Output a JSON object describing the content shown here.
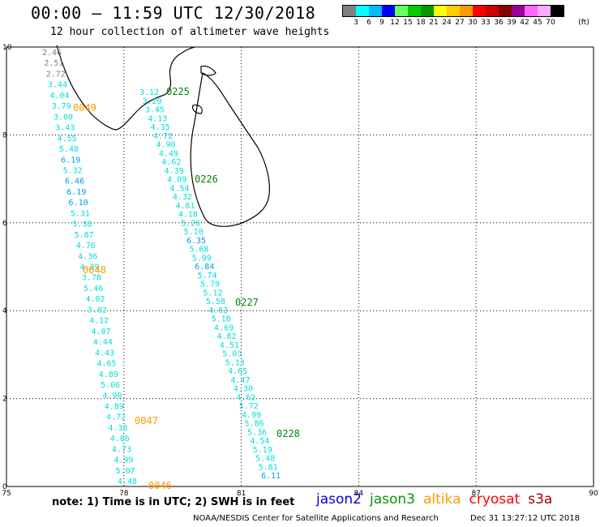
{
  "title": "00:00 – 11:59 UTC 12/30/2018",
  "subtitle": "12 hour collection of altimeter wave heights",
  "legend": {
    "colors": [
      "#808080",
      "#00ffff",
      "#00bbff",
      "#0000ff",
      "#66ff66",
      "#00cc00",
      "#009900",
      "#ffff00",
      "#ffcc00",
      "#ff9900",
      "#ff0000",
      "#cc0000",
      "#880000",
      "#990099",
      "#ff66ff",
      "#ffaaff",
      "#000000"
    ],
    "labels": [
      "3",
      "6",
      "9",
      "12",
      "15",
      "18",
      "21",
      "24",
      "27",
      "30",
      "33",
      "36",
      "39",
      "42",
      "45",
      "70"
    ],
    "unit": "(ft)"
  },
  "axes": {
    "x_ticks": [
      "75",
      "78",
      "81",
      "84",
      "87",
      "90"
    ],
    "y_ticks": [
      "0",
      "2",
      "4",
      "6",
      "8",
      "10"
    ]
  },
  "tracks": [
    {
      "label": "0049",
      "color": "#ff9900"
    },
    {
      "label": "0225",
      "color": "#008800"
    },
    {
      "label": "0226",
      "color": "#008800"
    },
    {
      "label": "0048",
      "color": "#ff9900"
    },
    {
      "label": "0227",
      "color": "#008800"
    },
    {
      "label": "0047",
      "color": "#ff9900"
    },
    {
      "label": "0228",
      "color": "#008800"
    },
    {
      "label": "0046",
      "color": "#ff9900"
    }
  ],
  "track_a_values": [
    "2.46",
    "2.51",
    "2.72",
    "3.44",
    "4.04",
    "3.79",
    "3.00",
    "3.43",
    "4.55",
    "5.48",
    "6.19",
    "5.32",
    "6.46",
    "6.19",
    "6.10",
    "5.31",
    "5.38",
    "5.87",
    "4.76",
    "4.36",
    "4.29",
    "3.78",
    "5.46",
    "4.02",
    "3.82",
    "4.12",
    "4.07",
    "4.44",
    "4.43",
    "4.65",
    "4.89",
    "5.06",
    "4.90",
    "4.89",
    "4.72",
    "4.38",
    "4.86",
    "4.73",
    "4.99",
    "5.07",
    "4.48"
  ],
  "track_b_values": [
    "3.12",
    "3.20",
    "3.45",
    "4.13",
    "4.35",
    "4.72",
    "4.90",
    "4.49",
    "4.62",
    "4.39",
    "4.09",
    "4.54",
    "4.32",
    "4.81",
    "4.18",
    "5.26",
    "5.10",
    "6.35",
    "5.68",
    "5.99",
    "6.84",
    "5.74",
    "5.79",
    "5.12",
    "5.58",
    "4.63",
    "5.18",
    "4.69",
    "4.82",
    "4.51",
    "5.03",
    "5.13",
    "4.65",
    "4.47",
    "4.30",
    "4.62",
    "5.72",
    "4.99",
    "5.86",
    "5.36",
    "4.54",
    "5.19",
    "5.48",
    "5.81",
    "6.11"
  ],
  "note": "note: 1) Time is in UTC; 2) SWH is in feet",
  "missions": [
    {
      "name": "jason2",
      "color": "#0000ee"
    },
    {
      "name": "jason3",
      "color": "#009900"
    },
    {
      "name": "altika",
      "color": "#ff9900"
    },
    {
      "name": "cryosat",
      "color": "#ff0000"
    },
    {
      "name": "s3a",
      "color": "#aa0000"
    }
  ],
  "credit": "NOAA/NESDIS Center for Satellite Applications and Research",
  "timestamp": "Dec 31 13:27:12 UTC 2018"
}
